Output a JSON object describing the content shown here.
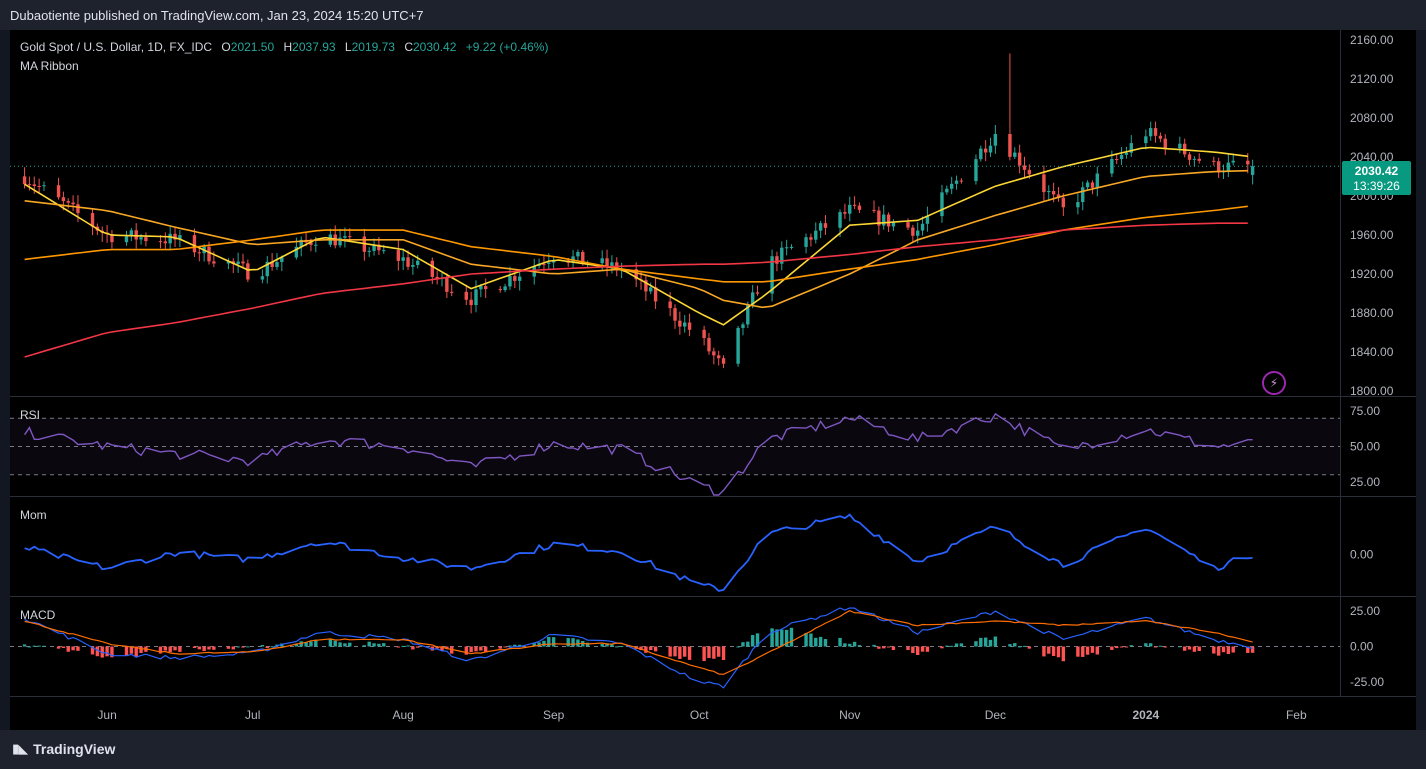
{
  "header": {
    "published": "Dubaotiente published on TradingView.com, Jan 23, 2024 15:20 UTC+7"
  },
  "legend": {
    "symbol": "Gold Spot / U.S. Dollar, 1D, FX_IDC",
    "o_label": "O",
    "o_value": "2021.50",
    "h_label": "H",
    "h_value": "2037.93",
    "l_label": "L",
    "l_value": "2019.73",
    "c_label": "C",
    "c_value": "2030.42",
    "change": "+9.22 (+0.46%)"
  },
  "indicators": {
    "ma": "MA Ribbon",
    "rsi": "RSI",
    "mom": "Mom",
    "macd": "MACD"
  },
  "price_tag": {
    "price": "2030.42",
    "countdown": "13:39:26"
  },
  "footer": {
    "brand": "TradingView"
  },
  "colors": {
    "up": "#26a69a",
    "down": "#ef5350",
    "rsi": "#7e57c2",
    "mom": "#2962ff",
    "ma20": "#fdd835",
    "ma50": "#f9a825",
    "ma100": "#ff9800",
    "ma200": "#f23645"
  },
  "chart_data": {
    "type": "line",
    "x_ticks": [
      "Jun",
      "Jul",
      "Aug",
      "Sep",
      "Oct",
      "Nov",
      "Dec",
      "2024",
      "Feb"
    ],
    "price_ticks": [
      "2160.00",
      "2120.00",
      "2080.00",
      "2040.00",
      "2000.00",
      "1960.00",
      "1920.00",
      "1880.00",
      "1840.00",
      "1800.00"
    ],
    "price_range": [
      1795,
      2170
    ],
    "dates": [
      "2023-05-15",
      "2023-06-01",
      "2023-06-15",
      "2023-07-01",
      "2023-07-15",
      "2023-08-01",
      "2023-08-15",
      "2023-09-01",
      "2023-09-15",
      "2023-10-01",
      "2023-10-06",
      "2023-10-15",
      "2023-11-01",
      "2023-11-15",
      "2023-12-01",
      "2023-12-15",
      "2024-01-01",
      "2024-01-15",
      "2024-01-23"
    ],
    "series": [
      {
        "name": "Gold Spot / U.S. Dollar",
        "type": "candlestick",
        "values": [
          2020,
          1960,
          1955,
          1920,
          1960,
          1935,
          1895,
          1940,
          1925,
          1855,
          1822,
          1930,
          1985,
          1965,
          2065,
          1985,
          2065,
          2030,
          2030.42
        ]
      },
      {
        "name": "MA20",
        "values": [
          2012,
          1960,
          1958,
          1922,
          1958,
          1945,
          1905,
          1935,
          1925,
          1880,
          1868,
          1900,
          1970,
          1975,
          2010,
          2030,
          2050,
          2045,
          2040
        ]
      },
      {
        "name": "MA50",
        "values": [
          1995,
          1985,
          1968,
          1950,
          1955,
          1955,
          1930,
          1920,
          1925,
          1905,
          1893,
          1885,
          1920,
          1955,
          1980,
          2000,
          2020,
          2025,
          2026
        ]
      },
      {
        "name": "MA100",
        "values": [
          1935,
          1945,
          1945,
          1955,
          1965,
          1965,
          1948,
          1938,
          1925,
          1915,
          1912,
          1912,
          1925,
          1935,
          1950,
          1965,
          1978,
          1985,
          1990
        ]
      },
      {
        "name": "MA200",
        "values": [
          1835,
          1860,
          1870,
          1885,
          1900,
          1910,
          1920,
          1925,
          1928,
          1930,
          1930,
          1932,
          1940,
          1948,
          1955,
          1965,
          1970,
          1972,
          1972
        ]
      }
    ],
    "rsi": {
      "ticks": [
        "75.00",
        "50.00",
        "25.00"
      ],
      "levels": [
        70,
        50,
        30
      ],
      "values": [
        60,
        50,
        45,
        40,
        55,
        50,
        35,
        52,
        48,
        22,
        18,
        55,
        70,
        55,
        72,
        48,
        62,
        50,
        52
      ]
    },
    "momentum": {
      "ticks": [
        "0.00"
      ],
      "values": [
        20,
        -40,
        5,
        -15,
        40,
        -10,
        -40,
        30,
        10,
        -90,
        -100,
        60,
        110,
        -20,
        80,
        -30,
        80,
        -40,
        0
      ]
    },
    "macd": {
      "ticks": [
        "25.00",
        "0.00",
        "-25.00"
      ],
      "macd": [
        20,
        -5,
        -8,
        -5,
        10,
        5,
        -10,
        8,
        2,
        -25,
        -28,
        10,
        28,
        10,
        25,
        5,
        20,
        5,
        0
      ],
      "signal": [
        18,
        2,
        -5,
        -4,
        5,
        5,
        -5,
        2,
        2,
        -15,
        -20,
        -5,
        25,
        15,
        18,
        15,
        18,
        10,
        3
      ]
    }
  }
}
